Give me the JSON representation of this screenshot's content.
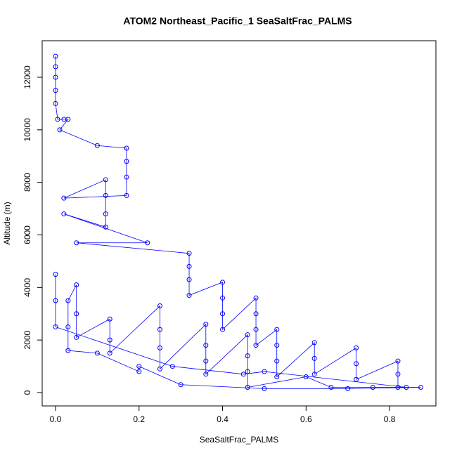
{
  "chart_data": {
    "type": "line",
    "title": "ATOM2 Northeast_Pacific_1 SeaSaltFrac_PALMS",
    "x_label": "SeaSaltFrac_PALMS",
    "y_label": "Altitude (m)",
    "color": "#0000ff",
    "x": [
      0,
      0,
      0,
      0,
      0,
      0.005,
      0.02,
      0.03,
      0.01,
      0.1,
      0.17,
      0.17,
      0.17,
      0.17,
      0.02,
      0.12,
      0.12,
      0.12,
      0.12,
      0.02,
      0.22,
      0.05,
      0.32,
      0.32,
      0.32,
      0.32,
      0.4,
      0.4,
      0.4,
      0.4,
      0.48,
      0.48,
      0.48,
      0.48,
      0.53,
      0.53,
      0.53,
      0.53,
      0.62,
      0.62,
      0.62,
      0.72,
      0.72,
      0.72,
      0.82,
      0.82,
      0.82,
      0.875,
      0.7,
      0.5,
      0.3,
      0.2,
      0.2,
      0.1,
      0.03,
      0.03,
      0.03,
      0.05,
      0.05,
      0.05,
      0.13,
      0.13,
      0.13,
      0.25,
      0.25,
      0.25,
      0.25,
      0.36,
      0.36,
      0.36,
      0.36,
      0.46,
      0.46,
      0.46,
      0.46,
      0.6,
      0.66,
      0.76,
      0.84,
      0.5,
      0.45,
      0.28,
      0,
      0,
      0
    ],
    "values": [
      12800,
      12400,
      12000,
      11500,
      11000,
      10400,
      10400,
      10400,
      10000,
      9400,
      9300,
      8800,
      8200,
      7500,
      7400,
      8100,
      7500,
      6800,
      6300,
      6800,
      5700,
      5700,
      5300,
      4800,
      4300,
      3700,
      4200,
      3600,
      3000,
      2400,
      3600,
      3000,
      2400,
      1800,
      2400,
      1800,
      1200,
      600,
      1900,
      1300,
      700,
      1700,
      1100,
      500,
      1200,
      700,
      200,
      200,
      150,
      150,
      300,
      1000,
      800,
      1500,
      1600,
      2500,
      3500,
      4100,
      3000,
      2100,
      2800,
      2000,
      1500,
      3300,
      2400,
      1700,
      900,
      2600,
      1800,
      1200,
      700,
      2200,
      1400,
      800,
      200,
      600,
      200,
      200,
      200,
      800,
      700,
      1000,
      2500,
      3500,
      4500
    ],
    "xlim": [
      -0.032,
      0.911
    ],
    "ylim": [
      -508,
      13390
    ],
    "xticks": [
      {
        "value": 0,
        "label": "0.0"
      },
      0.2,
      0.4,
      0.6,
      0.8
    ],
    "yticks": [
      0,
      2000,
      4000,
      6000,
      8000,
      10000,
      12000
    ]
  }
}
